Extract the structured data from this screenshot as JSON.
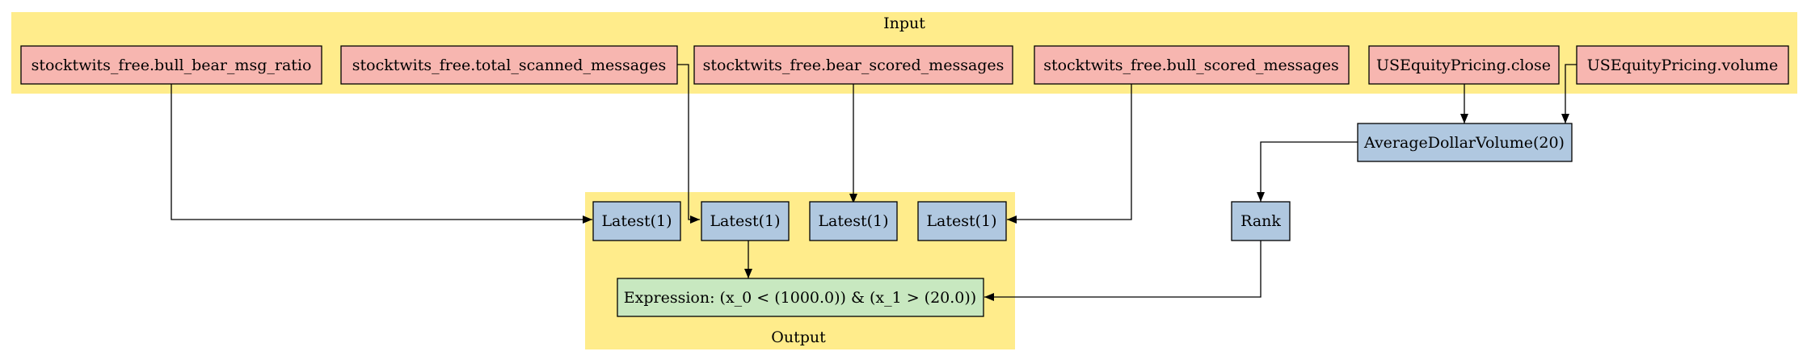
{
  "colors": {
    "cluster_fill": "#ffec8b",
    "input_node_fill": "#f7b6b0",
    "term_node_fill": "#b0c8e0",
    "output_node_fill": "#c8e8c0",
    "edge": "#000000"
  },
  "clusters": {
    "input": {
      "label": "Input"
    },
    "output": {
      "label": "Output"
    }
  },
  "nodes": {
    "bull_bear_ratio": {
      "label": "stocktwits_free.bull_bear_msg_ratio"
    },
    "total_scanned": {
      "label": "stocktwits_free.total_scanned_messages"
    },
    "bear_scored": {
      "label": "stocktwits_free.bear_scored_messages"
    },
    "bull_scored": {
      "label": "stocktwits_free.bull_scored_messages"
    },
    "close": {
      "label": "USEquityPricing.close"
    },
    "volume": {
      "label": "USEquityPricing.volume"
    },
    "avg_dollar_volume": {
      "label": "AverageDollarVolume(20)"
    },
    "latest_1": {
      "label": "Latest(1)"
    },
    "latest_2": {
      "label": "Latest(1)"
    },
    "latest_3": {
      "label": "Latest(1)"
    },
    "latest_4": {
      "label": "Latest(1)"
    },
    "rank": {
      "label": "Rank"
    },
    "expression": {
      "label": "Expression: (x_0 < (1000.0)) & (x_1 > (20.0))"
    }
  }
}
